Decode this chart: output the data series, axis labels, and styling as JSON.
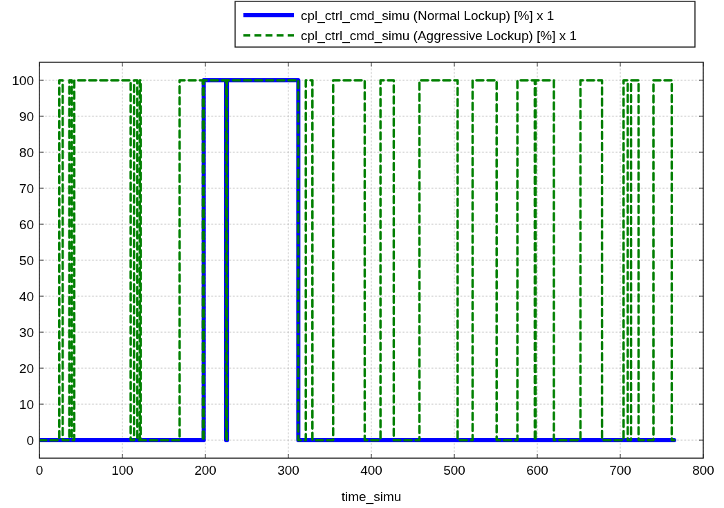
{
  "chart_data": {
    "type": "step",
    "xlabel": "time_simu",
    "xlim": [
      0,
      800
    ],
    "xticks": [
      0,
      100,
      200,
      300,
      400,
      500,
      600,
      700,
      800
    ],
    "ylim": [
      -5,
      105
    ],
    "yticks": [
      0,
      10,
      20,
      30,
      40,
      50,
      60,
      70,
      80,
      90,
      100
    ],
    "grid": true,
    "legend": "top right",
    "series": [
      {
        "name": "cpl_ctrl_cmd_simu (Normal Lockup) [%] x 1",
        "color": "#0000ff",
        "line_style": "solid",
        "x": [
          0,
          198,
          225,
          226,
          312,
          765
        ],
        "values": [
          0,
          100,
          0,
          100,
          0,
          0
        ]
      },
      {
        "name": "cpl_ctrl_cmd_simu (Aggressive Lockup) [%] x 1",
        "color": "#008000",
        "line_style": "dashed",
        "x": [
          0,
          24,
          28,
          36,
          39,
          42,
          110,
          114,
          118,
          121,
          122,
          169,
          197,
          198,
          225,
          226,
          312,
          321,
          329,
          354,
          392,
          411,
          427,
          458,
          504,
          522,
          551,
          576,
          597,
          598,
          620,
          652,
          678,
          704,
          709,
          713,
          722,
          740,
          762,
          765
        ],
        "values": [
          0,
          100,
          0,
          100,
          0,
          100,
          0,
          100,
          0,
          100,
          0,
          100,
          0,
          100,
          0,
          100,
          0,
          100,
          0,
          100,
          0,
          100,
          0,
          100,
          0,
          100,
          0,
          100,
          0,
          100,
          0,
          100,
          0,
          100,
          0,
          100,
          0,
          100,
          0,
          0
        ]
      }
    ]
  }
}
